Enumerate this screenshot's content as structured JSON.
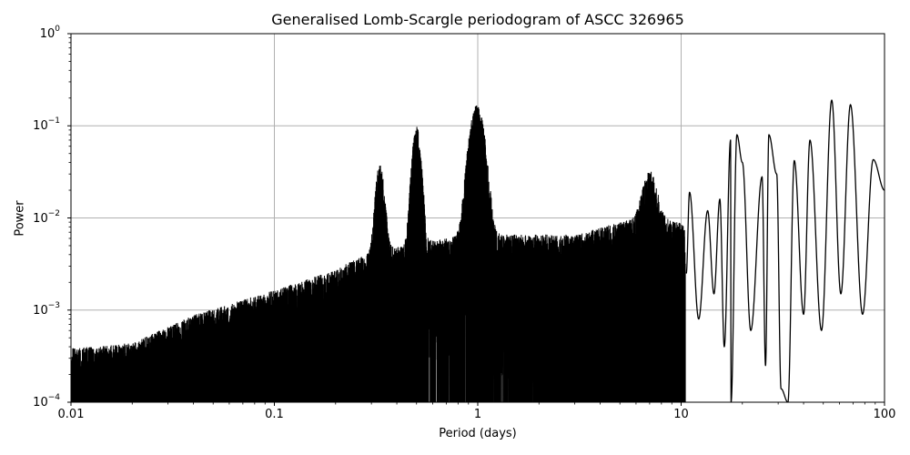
{
  "chart_data": {
    "type": "line",
    "title": "Generalised Lomb-Scargle periodogram of ASCC 326965",
    "xlabel": "Period (days)",
    "ylabel": "Power",
    "xscale": "log",
    "yscale": "log",
    "xlim": [
      0.01,
      100
    ],
    "ylim": [
      0.0001,
      1
    ],
    "grid": true,
    "legend": null,
    "x_ticks": [
      "0.01",
      "0.1",
      "1",
      "10",
      "100"
    ],
    "y_ticks": [
      {
        "base": "10",
        "exp": "0"
      },
      {
        "base": "10",
        "exp": "−1"
      },
      {
        "base": "10",
        "exp": "−2"
      },
      {
        "base": "10",
        "exp": "−3"
      },
      {
        "base": "10",
        "exp": "−4"
      }
    ],
    "line_color": "#000000",
    "grid_color": "#b0b0b0",
    "noise_envelope": [
      {
        "period": 0.01,
        "power": 0.00035
      },
      {
        "period": 0.02,
        "power": 0.0004
      },
      {
        "period": 0.04,
        "power": 0.0008
      },
      {
        "period": 0.1,
        "power": 0.0015
      },
      {
        "period": 0.2,
        "power": 0.0025
      },
      {
        "period": 0.3,
        "power": 0.004
      },
      {
        "period": 0.5,
        "power": 0.005
      },
      {
        "period": 1.0,
        "power": 0.006
      },
      {
        "period": 3.0,
        "power": 0.006
      },
      {
        "period": 7.0,
        "power": 0.01
      },
      {
        "period": 10.0,
        "power": 0.008
      }
    ],
    "notable_peaks": [
      {
        "period": 0.5,
        "power": 0.09
      },
      {
        "period": 0.33,
        "power": 0.035
      },
      {
        "period": 0.99,
        "power": 0.155
      },
      {
        "period": 7.0,
        "power": 0.03
      },
      {
        "period": 11.0,
        "power": 0.019
      },
      {
        "period": 17.5,
        "power": 0.07
      },
      {
        "period": 18.8,
        "power": 0.08
      },
      {
        "period": 20.0,
        "power": 0.04
      },
      {
        "period": 25.0,
        "power": 0.028
      },
      {
        "period": 27.0,
        "power": 0.08
      },
      {
        "period": 29.5,
        "power": 0.03
      },
      {
        "period": 36.0,
        "power": 0.042
      },
      {
        "period": 43.0,
        "power": 0.07
      },
      {
        "period": 55.0,
        "power": 0.19
      },
      {
        "period": 68.0,
        "power": 0.17
      },
      {
        "period": 88.0,
        "power": 0.043
      }
    ],
    "notable_minima": [
      {
        "period": 17.6,
        "power": 0.0001
      },
      {
        "period": 22.0,
        "power": 0.0006
      },
      {
        "period": 26.0,
        "power": 0.00025
      },
      {
        "period": 31.0,
        "power": 0.00014
      },
      {
        "period": 33.5,
        "power": 0.0001
      },
      {
        "period": 40.0,
        "power": 0.0009
      },
      {
        "period": 49.0,
        "power": 0.0006
      },
      {
        "period": 61.0,
        "power": 0.0015
      },
      {
        "period": 78.0,
        "power": 0.0009
      }
    ],
    "end_value": {
      "period": 100,
      "power": 0.02
    }
  }
}
